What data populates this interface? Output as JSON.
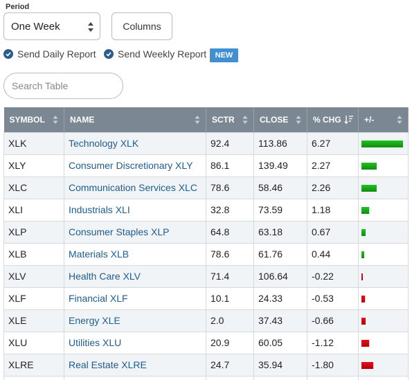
{
  "controls": {
    "period_label": "Period",
    "period_value": "One Week",
    "columns_label": "Columns",
    "send_daily": "Send Daily Report",
    "send_weekly": "Send Weekly Report",
    "new_badge": "NEW",
    "search_placeholder": "Search Table"
  },
  "colors": {
    "header_bg": "#7b8894",
    "link": "#1f5c8d",
    "positive": "#16a316",
    "negative": "#d10a17",
    "badge": "#3f8fd2"
  },
  "table": {
    "headers": [
      "SYMBOL",
      "NAME",
      "SCTR",
      "CLOSE",
      "% CHG",
      "+/-"
    ],
    "rows": [
      {
        "symbol": "XLK",
        "name": "Technology XLK",
        "sctr": "92.4",
        "close": "113.86",
        "chg": "6.27",
        "chg_value": 6.27
      },
      {
        "symbol": "XLY",
        "name": "Consumer Discretionary XLY",
        "sctr": "86.1",
        "close": "139.49",
        "chg": "2.27",
        "chg_value": 2.27
      },
      {
        "symbol": "XLC",
        "name": "Communication Services XLC",
        "sctr": "78.6",
        "close": "58.46",
        "chg": "2.26",
        "chg_value": 2.26
      },
      {
        "symbol": "XLI",
        "name": "Industrials XLI",
        "sctr": "32.8",
        "close": "73.59",
        "chg": "1.18",
        "chg_value": 1.18
      },
      {
        "symbol": "XLP",
        "name": "Consumer Staples XLP",
        "sctr": "64.8",
        "close": "63.18",
        "chg": "0.67",
        "chg_value": 0.67
      },
      {
        "symbol": "XLB",
        "name": "Materials XLB",
        "sctr": "78.6",
        "close": "61.76",
        "chg": "0.44",
        "chg_value": 0.44
      },
      {
        "symbol": "XLV",
        "name": "Health Care XLV",
        "sctr": "71.4",
        "close": "106.64",
        "chg": "-0.22",
        "chg_value": -0.22
      },
      {
        "symbol": "XLF",
        "name": "Financial XLF",
        "sctr": "10.1",
        "close": "24.33",
        "chg": "-0.53",
        "chg_value": -0.53
      },
      {
        "symbol": "XLE",
        "name": "Energy XLE",
        "sctr": "2.0",
        "close": "37.43",
        "chg": "-0.66",
        "chg_value": -0.66
      },
      {
        "symbol": "XLU",
        "name": "Utilities XLU",
        "sctr": "20.9",
        "close": "60.05",
        "chg": "-1.12",
        "chg_value": -1.12
      },
      {
        "symbol": "XLRE",
        "name": "Real Estate XLRE",
        "sctr": "24.7",
        "close": "35.94",
        "chg": "-1.80",
        "chg_value": -1.8
      }
    ]
  }
}
